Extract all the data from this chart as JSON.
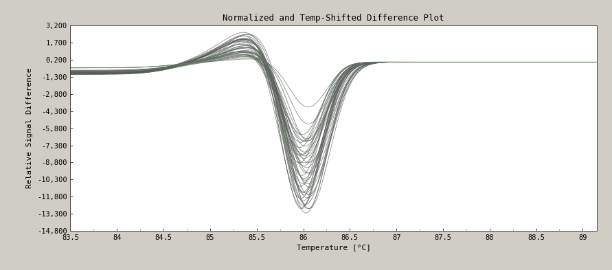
{
  "title": "Normalized and Temp-Shifted Difference Plot",
  "xlabel": "Temperature [°C]",
  "ylabel": "Relative Signal Difference",
  "xlim": [
    83.5,
    89.15
  ],
  "ylim": [
    -14.8,
    3.2
  ],
  "yticks": [
    3.2,
    1.7,
    0.2,
    -1.3,
    -2.8,
    -4.3,
    -5.8,
    -7.3,
    -8.8,
    -10.3,
    -11.8,
    -13.3,
    -14.8
  ],
  "ytick_labels": [
    "3,200",
    "1,700",
    "0,200",
    "-1,300",
    "-2,800",
    "-4,300",
    "-5,800",
    "-7,300",
    "-8,800",
    "-10,300",
    "-11,800",
    "-13,300",
    "-14,800"
  ],
  "xticks": [
    83.5,
    84.0,
    84.5,
    85.0,
    85.5,
    86.0,
    86.5,
    87.0,
    87.5,
    88.0,
    88.5,
    89.0
  ],
  "xtick_labels": [
    "83.5",
    "84",
    "84.5",
    "85",
    "85.5",
    "86",
    "86.5",
    "87",
    "87.5",
    "88",
    "88.5",
    "89"
  ],
  "bg_color": "#d0cdc5",
  "plot_bg_color": "#ffffff",
  "line_color_dark": "#5a5a5a",
  "line_color_green": "#6a8a6a",
  "n_curves": 40,
  "title_fontsize": 9,
  "axis_fontsize": 8,
  "tick_fontsize": 7.5
}
